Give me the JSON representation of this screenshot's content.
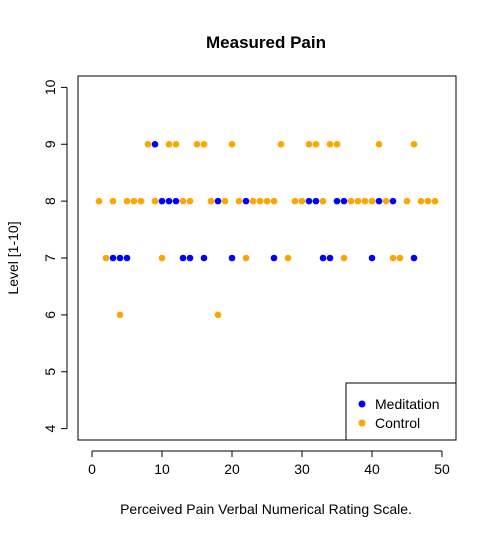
{
  "chart_data": {
    "type": "scatter",
    "title": "Measured Pain",
    "xlabel": "Perceived Pain Verbal Numerical Rating Scale.",
    "ylabel": "Level [1-10]",
    "xlim": [
      -2,
      52
    ],
    "ylim": [
      3.8,
      10.2
    ],
    "x_ticks": [
      0,
      10,
      20,
      30,
      40,
      50
    ],
    "y_ticks": [
      4,
      5,
      6,
      7,
      8,
      9,
      10
    ],
    "x_tick_labels": [
      "0",
      "10",
      "20",
      "30",
      "40",
      "50"
    ],
    "y_tick_labels": [
      "4",
      "5",
      "6",
      "7",
      "8",
      "9",
      "10"
    ],
    "grid": false,
    "legend_position": "bottom-right",
    "series": [
      {
        "name": "Meditation",
        "color": "#0000ff",
        "points": [
          [
            3,
            7
          ],
          [
            4,
            7
          ],
          [
            5,
            7
          ],
          [
            9,
            9
          ],
          [
            10,
            8
          ],
          [
            11,
            8
          ],
          [
            12,
            8
          ],
          [
            13,
            7
          ],
          [
            14,
            7
          ],
          [
            16,
            7
          ],
          [
            18,
            8
          ],
          [
            20,
            7
          ],
          [
            22,
            8
          ],
          [
            26,
            7
          ],
          [
            31,
            8
          ],
          [
            32,
            8
          ],
          [
            33,
            7
          ],
          [
            34,
            7
          ],
          [
            35,
            8
          ],
          [
            36,
            8
          ],
          [
            40,
            7
          ],
          [
            41,
            8
          ],
          [
            43,
            8
          ],
          [
            46,
            7
          ]
        ]
      },
      {
        "name": "Control",
        "color": "#ffa500",
        "points": [
          [
            1,
            8
          ],
          [
            2,
            7
          ],
          [
            3,
            8
          ],
          [
            4,
            6
          ],
          [
            5,
            8
          ],
          [
            6,
            8
          ],
          [
            7,
            8
          ],
          [
            8,
            9
          ],
          [
            9,
            8
          ],
          [
            10,
            7
          ],
          [
            11,
            9
          ],
          [
            12,
            9
          ],
          [
            13,
            8
          ],
          [
            14,
            8
          ],
          [
            15,
            9
          ],
          [
            16,
            9
          ],
          [
            17,
            8
          ],
          [
            18,
            6
          ],
          [
            19,
            8
          ],
          [
            20,
            9
          ],
          [
            21,
            8
          ],
          [
            22,
            7
          ],
          [
            23,
            8
          ],
          [
            24,
            8
          ],
          [
            25,
            8
          ],
          [
            26,
            8
          ],
          [
            27,
            9
          ],
          [
            28,
            7
          ],
          [
            29,
            8
          ],
          [
            30,
            8
          ],
          [
            31,
            9
          ],
          [
            32,
            9
          ],
          [
            33,
            8
          ],
          [
            34,
            9
          ],
          [
            35,
            9
          ],
          [
            36,
            7
          ],
          [
            37,
            8
          ],
          [
            38,
            8
          ],
          [
            39,
            8
          ],
          [
            40,
            8
          ],
          [
            41,
            9
          ],
          [
            42,
            8
          ],
          [
            43,
            7
          ],
          [
            44,
            7
          ],
          [
            45,
            8
          ],
          [
            46,
            9
          ],
          [
            47,
            8
          ],
          [
            48,
            8
          ],
          [
            49,
            8
          ]
        ]
      }
    ]
  }
}
